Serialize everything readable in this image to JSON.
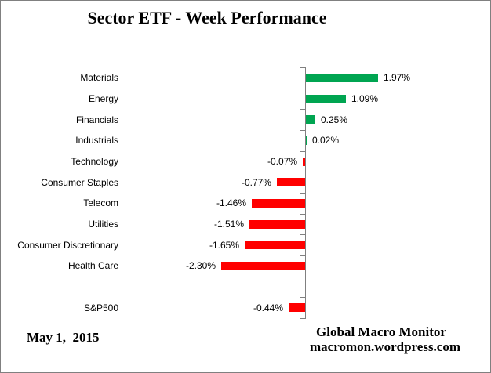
{
  "title": "Sector ETF - Week Performance",
  "chart_data": {
    "type": "bar",
    "orientation": "horizontal",
    "title": "Sector ETF - Week Performance",
    "categories": [
      "Materials",
      "Energy",
      "Financials",
      "Industrials",
      "Technology",
      "Consumer Staples",
      "Telecom",
      "Utilities",
      "Consumer Discretionary",
      "Health Care",
      "",
      "S&P500"
    ],
    "values": [
      1.97,
      1.09,
      0.25,
      0.02,
      -0.07,
      -0.77,
      -1.46,
      -1.51,
      -1.65,
      -2.3,
      null,
      -0.44
    ],
    "value_labels": [
      "1.97%",
      "1.09%",
      "0.25%",
      "0.02%",
      "-0.07%",
      "-0.77%",
      "-1.46%",
      "-1.51%",
      "-1.65%",
      "-2.30%",
      "",
      "-0.44%"
    ],
    "unit": "percent",
    "legend": false,
    "gridlines": false,
    "colors": {
      "positive": "#00A551",
      "negative": "#FF0000",
      "axis": "#808080",
      "text": "#000000"
    }
  },
  "footer": {
    "date": "May 1,  2015",
    "source_name": "Global Macro Monitor",
    "source_url": "macromon.wordpress.com"
  }
}
